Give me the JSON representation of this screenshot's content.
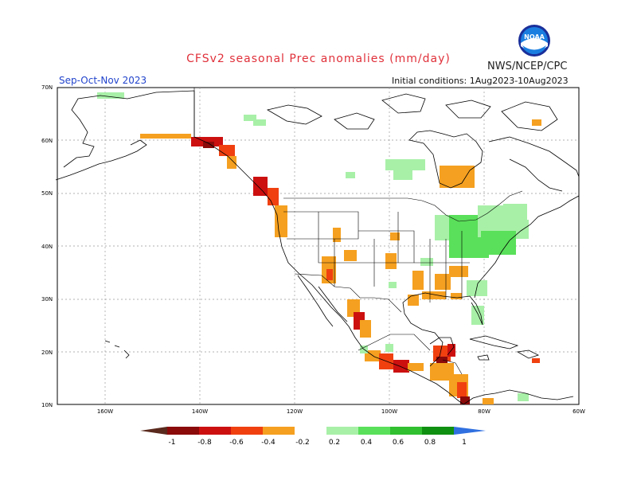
{
  "header": {
    "title": "CFSv2 seasonal Prec anomalies (mm/day)",
    "agency": "NWS/NCEP/CPC",
    "season": "Sep-Oct-Nov 2023",
    "initial_conditions": "Initial conditions: 1Aug2023-10Aug2023",
    "logo_icon": "noaa-logo-icon",
    "logo_text": "NOAA"
  },
  "map": {
    "lat_labels": [
      "70N",
      "60N",
      "50N",
      "40N",
      "30N",
      "20N",
      "10N"
    ],
    "lon_labels": [
      "160W",
      "140W",
      "120W",
      "100W",
      "80W",
      "60W"
    ]
  },
  "colorbar": {
    "labels": [
      "-1",
      "-0.8",
      "-0.6",
      "-0.4",
      "-0.2",
      "0.2",
      "0.4",
      "0.6",
      "0.8",
      "1"
    ],
    "colors": {
      "below_min": "#5a2a1e",
      "dry": [
        "#8b0a0a",
        "#cc1010",
        "#f04010",
        "#f5a020"
      ],
      "wet": [
        "#a8f0a8",
        "#5ae05a",
        "#30c030",
        "#109010"
      ],
      "above_max": "#3070e0"
    }
  }
}
